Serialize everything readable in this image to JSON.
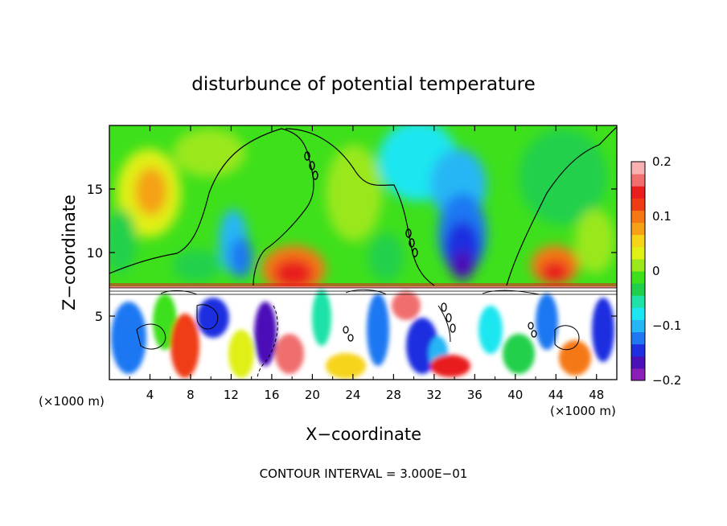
{
  "chart_data": {
    "type": "heatmap",
    "title": "disturbunce of potential temperature",
    "xlabel": "X−coordinate",
    "ylabel": "Z−coordinate",
    "x_unit_left": "(×1000 m)",
    "x_unit_right": "(×1000 m)",
    "xlim": [
      0,
      50
    ],
    "ylim": [
      0,
      20
    ],
    "x_ticks": [
      4,
      8,
      12,
      16,
      20,
      24,
      28,
      32,
      36,
      40,
      44,
      48
    ],
    "y_ticks": [
      5,
      10,
      15
    ],
    "colorbar": {
      "range": [
        -0.2,
        0.2
      ],
      "tick_labels": [
        {
          "value": 0.2,
          "label": "0.2"
        },
        {
          "value": 0.1,
          "label": "0.1"
        },
        {
          "value": 0.0,
          "label": "0"
        },
        {
          "value": -0.1,
          "label": "−0.1"
        },
        {
          "value": -0.2,
          "label": "−0.2"
        }
      ],
      "colors": [
        "#8a1fb8",
        "#4b10b8",
        "#1f2fe0",
        "#1f78f2",
        "#26b6f5",
        "#1ee6f0",
        "#1ee2a8",
        "#20d04c",
        "#3ee01c",
        "#9ae81c",
        "#e0f014",
        "#f6d41a",
        "#f6a016",
        "#f57814",
        "#ef3c14",
        "#e81d1d",
        "#f06e6e",
        "#f9b0b0"
      ]
    },
    "footer": "CONTOUR INTERVAL = 3.000E−01"
  }
}
